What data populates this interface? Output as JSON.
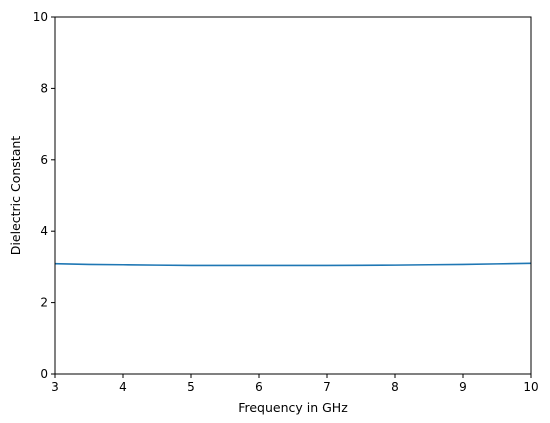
{
  "chart_data": {
    "type": "line",
    "title": "",
    "xlabel": "Frequency in GHz",
    "ylabel": "Dielectric Constant",
    "xlim": [
      3,
      10
    ],
    "ylim": [
      0,
      10
    ],
    "xticks": [
      3,
      4,
      5,
      6,
      7,
      8,
      9,
      10
    ],
    "yticks": [
      0,
      2,
      4,
      6,
      8,
      10
    ],
    "grid": false,
    "legend": "none",
    "series": [
      {
        "color": "#1f77b4",
        "x": [
          3,
          3.5,
          4,
          4.5,
          5,
          5.5,
          6,
          6.5,
          7,
          7.5,
          8,
          8.5,
          9,
          9.5,
          10
        ],
        "y": [
          3.09,
          3.07,
          3.06,
          3.05,
          3.04,
          3.04,
          3.04,
          3.04,
          3.04,
          3.045,
          3.05,
          3.06,
          3.07,
          3.085,
          3.1
        ]
      }
    ]
  }
}
